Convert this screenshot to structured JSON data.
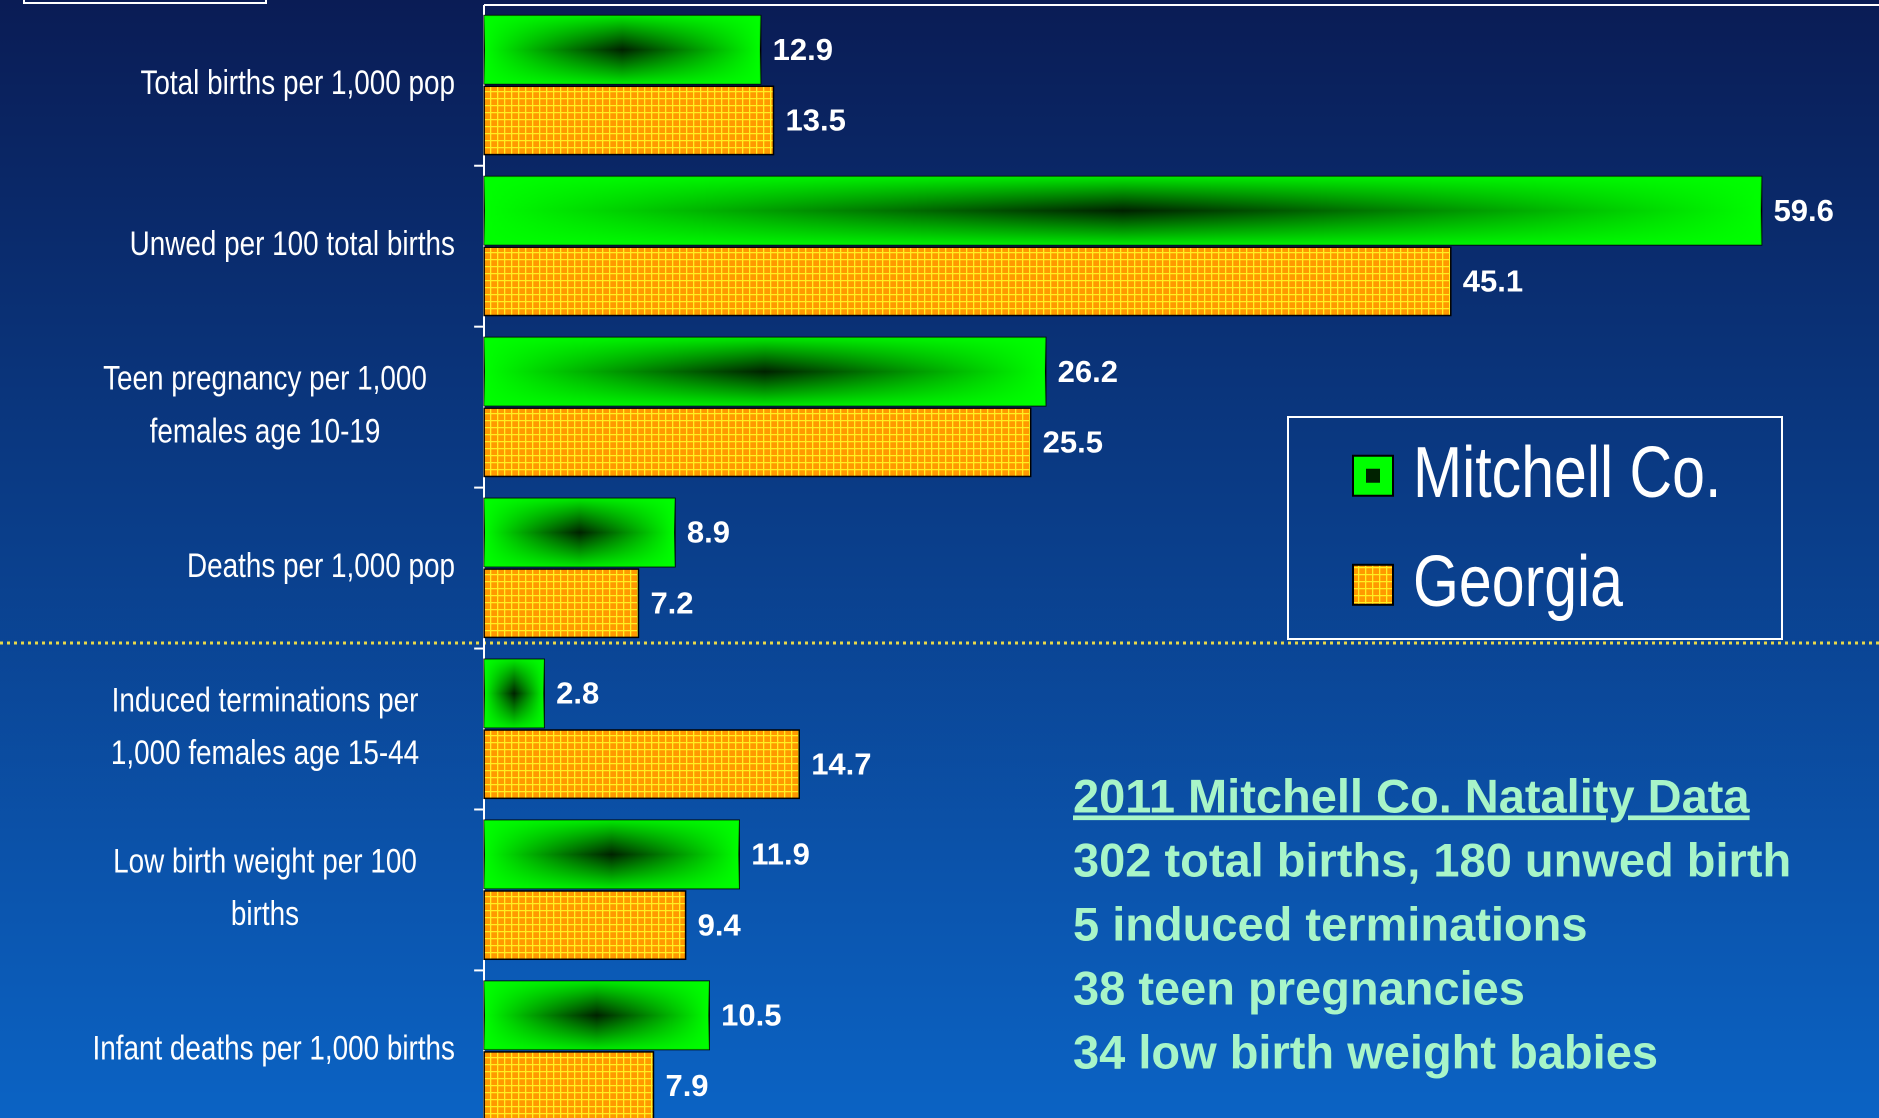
{
  "chart_data": {
    "type": "bar",
    "orientation": "horizontal",
    "categories": [
      [
        "Total births per 1,000 pop"
      ],
      [
        "Unwed per 100 total births"
      ],
      [
        "Teen pregnancy per 1,000",
        "females age 10-19"
      ],
      [
        "Deaths per 1,000 pop"
      ],
      [
        "Induced terminations per",
        "1,000 females age 15-44"
      ],
      [
        "Low birth weight per 100",
        "births"
      ],
      [
        "Infant deaths per 1,000 births"
      ]
    ],
    "series": [
      {
        "name": "Mitchell Co.",
        "color": "#00ff00",
        "values": [
          12.9,
          59.6,
          26.2,
          8.9,
          2.8,
          11.9,
          10.5
        ]
      },
      {
        "name": "Georgia",
        "color": "#ff9900",
        "values": [
          13.5,
          45.1,
          25.5,
          7.2,
          14.7,
          9.4,
          7.9
        ]
      }
    ],
    "legend": "right",
    "annotation": {
      "title": "2011 Mitchell Co. Natality Data",
      "lines": [
        "302 total births, 180 unwed birth",
        "5 induced terminations",
        "38 teen pregnancies",
        "34 low birth weight babies"
      ]
    }
  }
}
